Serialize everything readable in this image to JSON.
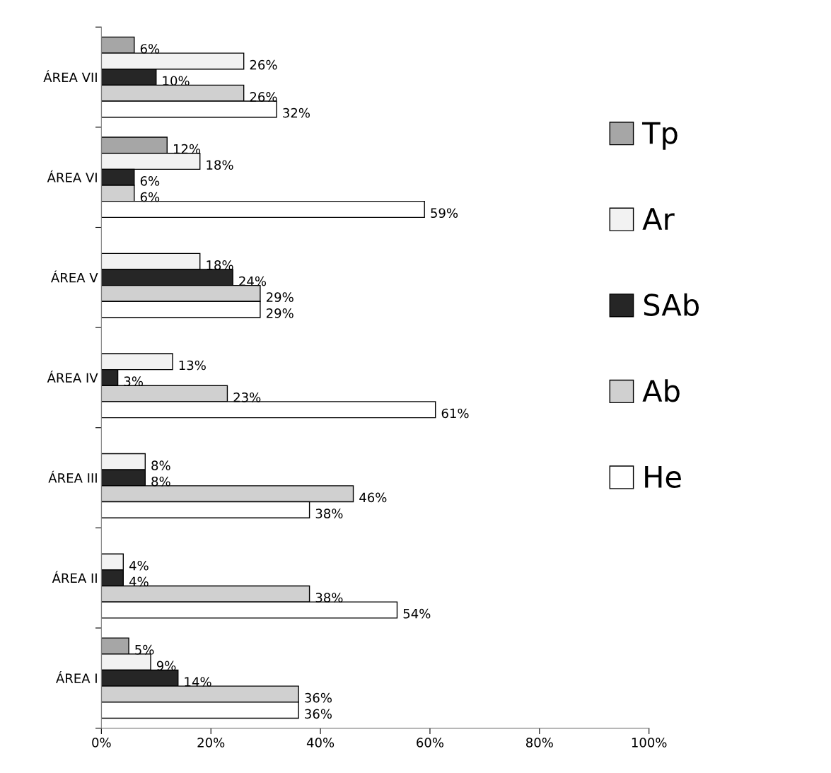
{
  "chart_data": {
    "type": "bar",
    "orientation": "horizontal",
    "categories": [
      "ÁREA VII",
      "ÁREA VI",
      "ÁREA V",
      "ÁREA IV",
      "ÁREA III",
      "ÁREA II",
      "ÁREA I"
    ],
    "series": [
      {
        "name": "Tp",
        "color": "#a6a6a6",
        "values": [
          6,
          12,
          null,
          null,
          null,
          null,
          5
        ],
        "value_labels": [
          "6%",
          "12%",
          null,
          null,
          null,
          null,
          "5%"
        ]
      },
      {
        "name": "Ar",
        "color": "#f2f2f2",
        "values": [
          26,
          18,
          18,
          13,
          8,
          4,
          9
        ],
        "value_labels": [
          "26%",
          "18%",
          "18%",
          "13%",
          "8%",
          "4%",
          "9%"
        ]
      },
      {
        "name": "SAb",
        "color": "#262626",
        "values": [
          10,
          6,
          24,
          3,
          8,
          4,
          14
        ],
        "value_labels": [
          "10%",
          "6%",
          "24%",
          "3%",
          "8%",
          "4%",
          "14%"
        ]
      },
      {
        "name": "Ab",
        "color": "#d0d0d0",
        "values": [
          26,
          6,
          29,
          23,
          46,
          38,
          36
        ],
        "value_labels": [
          "26%",
          "6%",
          "29%",
          "23%",
          "46%",
          "38%",
          "36%"
        ]
      },
      {
        "name": "He",
        "color": "#ffffff",
        "values": [
          32,
          59,
          29,
          61,
          38,
          54,
          36
        ],
        "value_labels": [
          "32%",
          "59%",
          "29%",
          "61%",
          "38%",
          "54%",
          "36%"
        ]
      }
    ],
    "xlim": [
      0,
      100
    ],
    "xticks": [
      {
        "value": 0,
        "label": "0%"
      },
      {
        "value": 20,
        "label": "20%"
      },
      {
        "value": 40,
        "label": "40%"
      },
      {
        "value": 60,
        "label": "60%"
      },
      {
        "value": 80,
        "label": "80%"
      },
      {
        "value": 100,
        "label": "100%"
      }
    ],
    "grid": false,
    "legend": "right"
  }
}
